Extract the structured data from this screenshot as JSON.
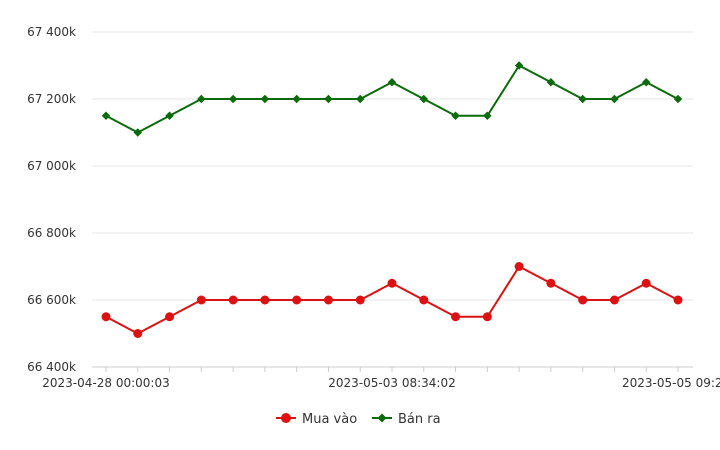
{
  "chart_data": {
    "type": "line",
    "title": "",
    "xlabel": "",
    "ylabel": "",
    "ylim": [
      66400000,
      67400000
    ],
    "yticks": [
      {
        "value": 66400000,
        "label": "66 400k"
      },
      {
        "value": 66600000,
        "label": "66 600k"
      },
      {
        "value": 66800000,
        "label": "66 800k"
      },
      {
        "value": 67000000,
        "label": "67 000k"
      },
      {
        "value": 67200000,
        "label": "67 200k"
      },
      {
        "value": 67400000,
        "label": "67 400k"
      }
    ],
    "x_tick_labels": [
      {
        "index": 0,
        "label": "2023-04-28 00:00:03"
      },
      {
        "index": 9,
        "label": "2023-05-03 08:34:02"
      },
      {
        "index": 18,
        "label": "2023-05-05 09:2..."
      }
    ],
    "point_count": 19,
    "grid": "horizontal",
    "legend_position": "bottom",
    "series": [
      {
        "name": "Mua vào",
        "color": "#dd1111",
        "marker": "circle",
        "values": [
          66550000,
          66500000,
          66550000,
          66600000,
          66600000,
          66600000,
          66600000,
          66600000,
          66600000,
          66650000,
          66600000,
          66550000,
          66550000,
          66700000,
          66650000,
          66600000,
          66600000,
          66650000,
          66600000
        ]
      },
      {
        "name": "Bán ra",
        "color": "#0a6b0a",
        "marker": "diamond",
        "values": [
          67150000,
          67100000,
          67150000,
          67200000,
          67200000,
          67200000,
          67200000,
          67200000,
          67200000,
          67250000,
          67200000,
          67150000,
          67150000,
          67300000,
          67250000,
          67200000,
          67200000,
          67250000,
          67200000
        ]
      }
    ]
  }
}
